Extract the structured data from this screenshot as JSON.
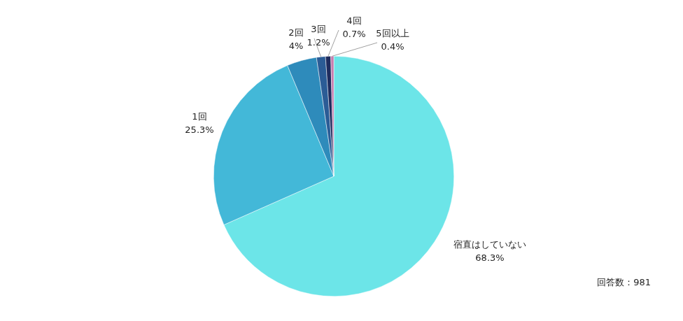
{
  "chart_data": {
    "type": "pie",
    "categories": [
      "宿直はしていない",
      "1回",
      "2回",
      "3回",
      "4回",
      "5回以上"
    ],
    "values": [
      68.3,
      25.3,
      4,
      1.2,
      0.7,
      0.4
    ],
    "value_labels": [
      "68.3%",
      "25.3%",
      "4%",
      "1.2%",
      "0.7%",
      "0.4%"
    ],
    "colors": [
      "#6ce5e8",
      "#43b8d8",
      "#2e8bbb",
      "#2b5c96",
      "#1f2c5e",
      "#c77daf"
    ],
    "data_labels": true,
    "legend": false,
    "annotation": "回答数：981"
  }
}
